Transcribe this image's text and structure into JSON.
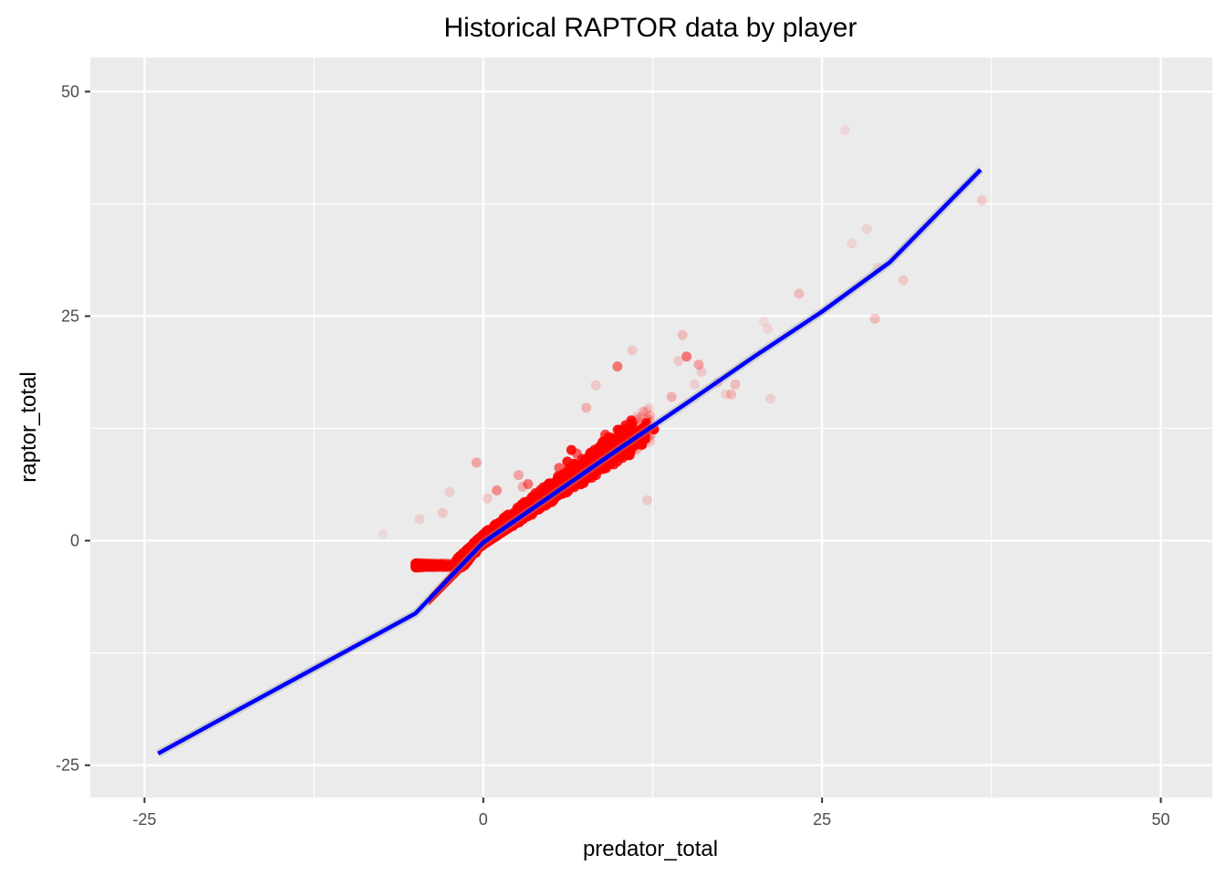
{
  "chart_data": {
    "type": "scatter",
    "title": "Historical RAPTOR data by player",
    "xlabel": "predator_total",
    "ylabel": "raptor_total",
    "xlim": [
      -29,
      53.8
    ],
    "ylim": [
      -28.6,
      53.8
    ],
    "x_ticks": [
      -25,
      0,
      25,
      50
    ],
    "x_tick_labels": [
      "-25",
      "0",
      "25",
      "50"
    ],
    "y_ticks": [
      -25,
      0,
      25,
      50
    ],
    "y_tick_labels": [
      "-25",
      "0",
      "25",
      "50"
    ],
    "grid": true,
    "legend": "none",
    "point_color": "#ff0000",
    "line_color": "#0000ff",
    "panel_color": "#ebebeb",
    "series": [
      {
        "kind": "points",
        "x": [
          26.7,
          36.8,
          28.3,
          27.2,
          29.1,
          31.0,
          23.3,
          28.9,
          20.7,
          21.0,
          14.7,
          14.4,
          15.0,
          16.1,
          15.6,
          15.9,
          17.3,
          18.6,
          18.3,
          17.9,
          21.2,
          13.9,
          11.0,
          9.9,
          8.3,
          7.6,
          12.0,
          12.6,
          11.7,
          10.3,
          9.0,
          6.5,
          6.2,
          6.9,
          5.6,
          3.3,
          2.6,
          1.0,
          -0.5,
          -2.5,
          -3.0,
          -4.7,
          -7.4,
          4.1,
          2.9,
          12.1,
          0.3,
          1.6
        ],
        "y": [
          45.7,
          37.9,
          34.7,
          33.1,
          30.4,
          29.0,
          27.5,
          24.7,
          24.4,
          23.6,
          22.9,
          20.0,
          20.5,
          18.8,
          17.4,
          19.6,
          17.6,
          17.4,
          16.3,
          16.3,
          15.8,
          16.0,
          21.2,
          19.4,
          17.3,
          14.8,
          13.1,
          12.4,
          10.7,
          12.2,
          11.8,
          10.1,
          8.8,
          9.7,
          8.1,
          6.3,
          7.3,
          5.6,
          8.7,
          5.4,
          3.1,
          2.4,
          0.7,
          4.1,
          6.0,
          4.5,
          4.7,
          2.3
        ],
        "alpha": [
          0.08,
          0.15,
          0.1,
          0.1,
          0.12,
          0.15,
          0.2,
          0.2,
          0.08,
          0.1,
          0.2,
          0.15,
          0.5,
          0.15,
          0.12,
          0.3,
          0.15,
          0.2,
          0.2,
          0.12,
          0.12,
          0.25,
          0.15,
          0.5,
          0.15,
          0.25,
          0.8,
          1.0,
          1.0,
          0.6,
          0.7,
          0.9,
          0.9,
          0.6,
          0.6,
          0.5,
          0.3,
          0.4,
          0.3,
          0.12,
          0.15,
          0.12,
          0.08,
          0.2,
          0.25,
          0.15,
          0.15,
          0.2
        ]
      },
      {
        "kind": "dense-cluster",
        "note": "",
        "x_range": [
          -5,
          12.5
        ],
        "y_range": [
          -3,
          12.5
        ]
      },
      {
        "kind": "fit-line",
        "x": [
          -24.0,
          -20.0,
          -15.0,
          -10.0,
          -5.0,
          0.0,
          5.0,
          10.0,
          15.0,
          20.0,
          25.0,
          30.0,
          36.7
        ],
        "y": [
          -23.7,
          -20.4,
          -16.3,
          -12.2,
          -8.1,
          -0.2,
          5.0,
          10.2,
          15.3,
          20.5,
          25.5,
          31.0,
          41.3
        ]
      }
    ]
  }
}
